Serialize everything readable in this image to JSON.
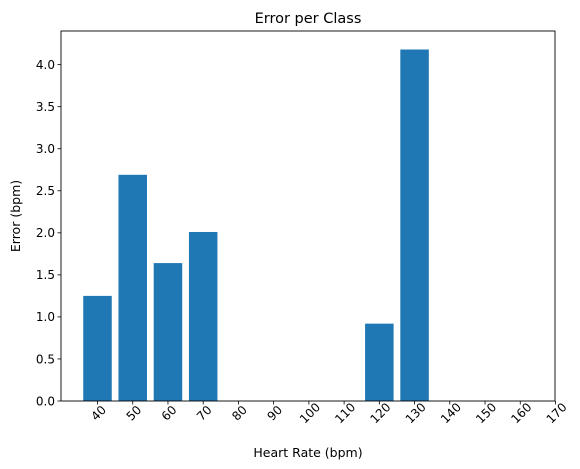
{
  "chart_data": {
    "type": "bar",
    "title": "Error per Class",
    "xlabel": "Heart Rate (bpm)",
    "ylabel": "Error (bpm)",
    "categories": [
      "40",
      "50",
      "60",
      "70",
      "80",
      "90",
      "100",
      "110",
      "120",
      "130",
      "140",
      "150",
      "160",
      "170"
    ],
    "values": [
      1.25,
      2.69,
      1.64,
      2.01,
      0,
      0,
      0,
      0,
      0.92,
      4.18,
      0,
      0,
      0,
      0
    ],
    "ylim": [
      0,
      4.4
    ],
    "yticks": [
      "0.0",
      "0.5",
      "1.0",
      "1.5",
      "2.0",
      "2.5",
      "3.0",
      "3.5",
      "4.0"
    ],
    "grid": false,
    "bar_color": "#1f77b4"
  }
}
